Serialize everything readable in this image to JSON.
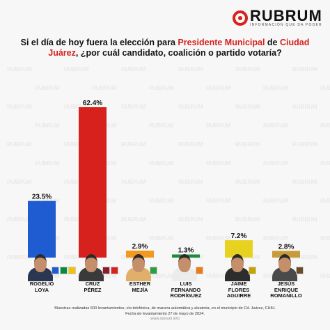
{
  "brand": {
    "name": "RUBRUM",
    "tagline": "INFORMACIÓN QUE DA PODER",
    "accent_color": "#d6211d",
    "logo_icon": "rubrum-circle-logo-icon"
  },
  "question": {
    "part1": "Si el día de hoy fuera la elección para ",
    "highlight1": "Presidente Municipal",
    "part2": " de ",
    "highlight2": "Ciudad Juárez",
    "part3": ", ¿por cuál candidato, coalición o partido votaría?"
  },
  "chart_data": {
    "type": "bar",
    "categories": [
      "ROGELIO LOYA",
      "CRUZ PÉREZ",
      "ESTHER MEJÍA",
      "LUIS FERNANDO RODRÍGUEZ",
      "JAIME FLORES AGUIRRE",
      "JESÚS ENRIQUE ROMANILLO"
    ],
    "values": [
      23.5,
      62.4,
      2.9,
      1.3,
      7.2,
      2.8
    ],
    "value_labels": [
      "23.5%",
      "62.4%",
      "2.9%",
      "1.3%",
      "7.2%",
      "2.8%"
    ],
    "bar_colors": [
      "#1f5bd1",
      "#d6211d",
      "#f39a1e",
      "#1f8a3b",
      "#e7d21f",
      "#c79a3a"
    ],
    "ylim": [
      0,
      65
    ],
    "grid": false,
    "title": "",
    "xlabel": "",
    "ylabel": ""
  },
  "candidates": [
    {
      "name": "ROGELIO\nLOYA",
      "party_logos": [
        "PAN",
        "PRI",
        "PRD"
      ]
    },
    {
      "name": "CRUZ\nPÉREZ",
      "party_logos": [
        "MORENA",
        "PT"
      ]
    },
    {
      "name": "ESTHER\nMEJÍA",
      "party_logos": [
        "PVEM"
      ]
    },
    {
      "name": "LUIS\nFERNANDO\nRODRÍGUEZ",
      "party_logos": [
        "MC"
      ]
    },
    {
      "name": "JAIME\nFLORES\nAGUIRRE",
      "party_logos": [
        "CHIH"
      ]
    },
    {
      "name": "JESÚS\nENRIQUE\nROMANILLO",
      "party_logos": [
        "PUEBLO"
      ]
    }
  ],
  "footnote": {
    "line1": "Muestras realizadas 600 levantamientos, vía telefónica, de manera automática y aleatoria, en el municipio de Cd. Juárez, CHIH.",
    "line2": "Fecha de levantamiento 27 de mayo de 2024.",
    "url": "www.rubrum.info"
  }
}
